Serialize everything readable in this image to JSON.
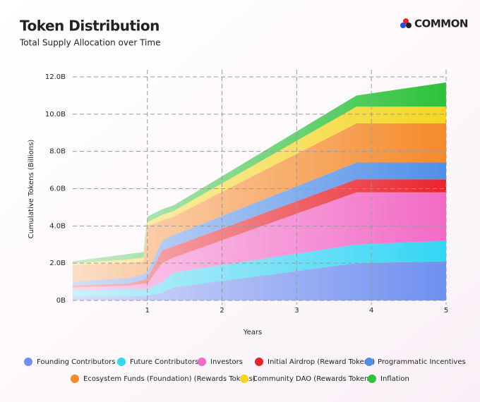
{
  "chart_data": {
    "type": "stacked_area",
    "title": "Token Distribution",
    "subtitle": "Total Supply Allocation over Time",
    "logo": "COMMON",
    "x_label": "Years",
    "y_label": "Cumulative Tokens (Billions)",
    "x": [
      0,
      0.75,
      0.95,
      1.0,
      1.2,
      1.35,
      3.8,
      5
    ],
    "xlim": [
      0,
      5
    ],
    "xticks": [
      1,
      2,
      3,
      4,
      5
    ],
    "ylim": [
      0,
      12
    ],
    "yticks": [
      {
        "value": 0,
        "label": "0B"
      },
      {
        "value": 2,
        "label": "2.0B"
      },
      {
        "value": 4,
        "label": "4.0B"
      },
      {
        "value": 6,
        "label": "6.0B"
      },
      {
        "value": 8,
        "label": "8.0B"
      },
      {
        "value": 10,
        "label": "10.0B"
      },
      {
        "value": 12,
        "label": "12.0B"
      }
    ],
    "grid": true,
    "series": [
      {
        "name": "Founding Contributors",
        "color": "#6f8ff0",
        "values": [
          0.2,
          0.22,
          0.25,
          0.25,
          0.4,
          0.7,
          2.0,
          2.1
        ]
      },
      {
        "name": "Future Contributors",
        "color": "#33d6f5",
        "values": [
          0.35,
          0.38,
          0.35,
          0.35,
          0.6,
          0.8,
          1.0,
          1.1
        ]
      },
      {
        "name": "Investors",
        "color": "#f26bc6",
        "values": [
          0.15,
          0.2,
          0.3,
          0.3,
          1.0,
          0.8,
          2.8,
          2.6
        ]
      },
      {
        "name": "Initial Airdrop (Reward Tokens)",
        "color": "#e8242b",
        "values": [
          0.1,
          0.1,
          0.2,
          0.3,
          0.7,
          0.6,
          0.7,
          0.7
        ]
      },
      {
        "name": "Programmatic Incentives",
        "color": "#4f8fe8",
        "values": [
          0.2,
          0.3,
          0.3,
          0.3,
          0.5,
          0.6,
          0.9,
          0.9
        ]
      },
      {
        "name": "Ecosystem Funds (Foundation) (Rewards Tokens)",
        "color": "#f58a2a",
        "values": [
          0.9,
          0.8,
          0.7,
          2.5,
          1.1,
          1.0,
          2.1,
          2.1
        ]
      },
      {
        "name": "Community DAO (Rewards Tokens)",
        "color": "#f5d622",
        "values": [
          0.1,
          0.2,
          0.2,
          0.2,
          0.3,
          0.3,
          0.9,
          0.9
        ]
      },
      {
        "name": "Inflation",
        "color": "#2cc23a",
        "values": [
          0.1,
          0.3,
          0.3,
          0.3,
          0.3,
          0.3,
          0.6,
          1.3
        ]
      }
    ]
  }
}
